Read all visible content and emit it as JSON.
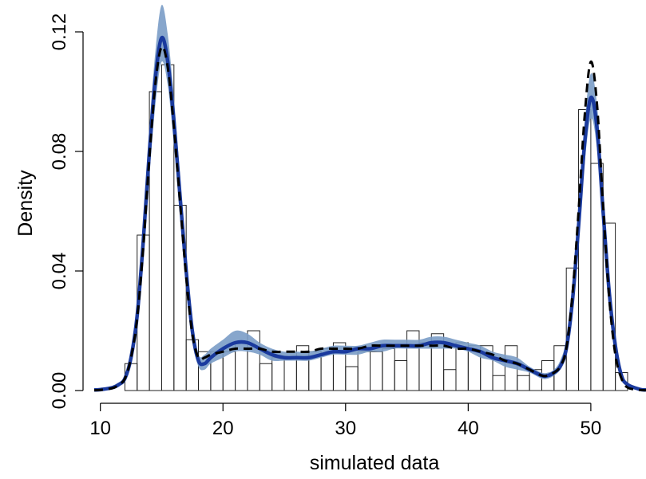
{
  "chart_data": {
    "type": "bar",
    "title": "",
    "xlabel": "simulated data",
    "ylabel": "Density",
    "xlim": [
      9.5,
      54.5
    ],
    "ylim": [
      0,
      0.13
    ],
    "grid": false,
    "x_ticks": [
      10,
      20,
      30,
      40,
      50
    ],
    "x_tick_labels": [
      "10",
      "20",
      "30",
      "40",
      "50"
    ],
    "y_ticks": [
      0,
      0.04,
      0.08,
      0.12
    ],
    "y_tick_labels": [
      "0.00",
      "0.04",
      "0.08",
      "0.12"
    ],
    "histogram": {
      "bin_width": 1,
      "bin_starts": [
        12,
        13,
        14,
        15,
        16,
        17,
        18,
        19,
        20,
        21,
        22,
        23,
        24,
        25,
        26,
        27,
        28,
        29,
        30,
        31,
        32,
        33,
        34,
        35,
        36,
        37,
        38,
        39,
        40,
        41,
        42,
        43,
        44,
        45,
        46,
        47,
        48,
        49,
        50,
        51,
        52
      ],
      "values": [
        0.009,
        0.052,
        0.1,
        0.109,
        0.062,
        0.017,
        0.013,
        0.013,
        0.013,
        0.016,
        0.02,
        0.009,
        0.011,
        0.011,
        0.015,
        0.013,
        0.014,
        0.016,
        0.008,
        0.013,
        0.013,
        0.014,
        0.01,
        0.02,
        0.016,
        0.019,
        0.007,
        0.016,
        0.015,
        0.015,
        0.005,
        0.015,
        0.005,
        0.007,
        0.01,
        0.015,
        0.041,
        0.094,
        0.076,
        0.056,
        0.006
      ]
    },
    "series": [
      {
        "name": "",
        "style": "solid-blue-with-band",
        "color": "#1a3a9e",
        "band_color": "#7a9cc6",
        "x": [
          9.5,
          10,
          11,
          11.5,
          12,
          12.5,
          13,
          13.5,
          14,
          14.5,
          15,
          15.5,
          16,
          16.5,
          17,
          17.5,
          18,
          18.5,
          19,
          20,
          21,
          22,
          23,
          24,
          25,
          26,
          27,
          28,
          29,
          30,
          31,
          32,
          33,
          34,
          35,
          36,
          37,
          38,
          39,
          40,
          41,
          42,
          43,
          44,
          45,
          46,
          46.5,
          47,
          47.5,
          48,
          48.5,
          49,
          49.5,
          50,
          50.5,
          51,
          51.5,
          52,
          52.5,
          53,
          54,
          54.5
        ],
        "values": [
          0.0002,
          0.0003,
          0.001,
          0.002,
          0.004,
          0.011,
          0.025,
          0.05,
          0.08,
          0.105,
          0.118,
          0.11,
          0.09,
          0.065,
          0.04,
          0.02,
          0.01,
          0.009,
          0.011,
          0.014,
          0.016,
          0.016,
          0.014,
          0.012,
          0.011,
          0.011,
          0.011,
          0.012,
          0.013,
          0.013,
          0.014,
          0.014,
          0.015,
          0.015,
          0.015,
          0.015,
          0.016,
          0.016,
          0.015,
          0.014,
          0.013,
          0.011,
          0.01,
          0.009,
          0.007,
          0.005,
          0.005,
          0.006,
          0.008,
          0.014,
          0.03,
          0.055,
          0.083,
          0.098,
          0.088,
          0.06,
          0.033,
          0.015,
          0.005,
          0.002,
          0.0004,
          0.0002
        ],
        "band_lower": [
          0.0001,
          0.0002,
          0.0008,
          0.0015,
          0.003,
          0.009,
          0.021,
          0.044,
          0.072,
          0.096,
          0.11,
          0.102,
          0.082,
          0.058,
          0.035,
          0.017,
          0.008,
          0.007,
          0.009,
          0.011,
          0.013,
          0.013,
          0.012,
          0.01,
          0.01,
          0.01,
          0.01,
          0.011,
          0.012,
          0.012,
          0.012,
          0.013,
          0.013,
          0.014,
          0.014,
          0.014,
          0.014,
          0.014,
          0.014,
          0.013,
          0.011,
          0.01,
          0.008,
          0.007,
          0.006,
          0.004,
          0.004,
          0.005,
          0.007,
          0.012,
          0.026,
          0.049,
          0.076,
          0.091,
          0.081,
          0.054,
          0.029,
          0.013,
          0.004,
          0.0015,
          0.0003,
          0.0001
        ],
        "band_upper": [
          0.0003,
          0.0004,
          0.0012,
          0.0025,
          0.005,
          0.013,
          0.029,
          0.056,
          0.088,
          0.114,
          0.129,
          0.119,
          0.098,
          0.072,
          0.045,
          0.023,
          0.012,
          0.012,
          0.014,
          0.017,
          0.02,
          0.019,
          0.016,
          0.014,
          0.013,
          0.013,
          0.013,
          0.014,
          0.015,
          0.015,
          0.015,
          0.016,
          0.017,
          0.017,
          0.017,
          0.017,
          0.018,
          0.018,
          0.017,
          0.016,
          0.015,
          0.013,
          0.012,
          0.011,
          0.008,
          0.006,
          0.006,
          0.007,
          0.01,
          0.017,
          0.034,
          0.061,
          0.09,
          0.106,
          0.096,
          0.067,
          0.038,
          0.018,
          0.006,
          0.0025,
          0.0006,
          0.0003
        ]
      },
      {
        "name": "",
        "style": "dashed-black",
        "color": "#000000",
        "x": [
          9.5,
          10,
          11,
          11.5,
          12,
          12.5,
          13,
          13.5,
          14,
          14.5,
          15,
          15.5,
          16,
          16.5,
          17,
          17.5,
          18,
          18.5,
          19,
          20,
          21,
          22,
          23,
          24,
          25,
          26,
          27,
          28,
          29,
          30,
          31,
          32,
          33,
          34,
          35,
          36,
          37,
          38,
          39,
          40,
          41,
          42,
          43,
          44,
          45,
          46,
          46.5,
          47,
          47.5,
          48,
          48.5,
          49,
          49.5,
          50,
          50.5,
          51,
          51.5,
          52,
          52.5,
          53,
          54,
          54.5
        ],
        "values": [
          0.0001,
          0.0002,
          0.0008,
          0.002,
          0.004,
          0.011,
          0.024,
          0.048,
          0.078,
          0.103,
          0.115,
          0.108,
          0.088,
          0.063,
          0.038,
          0.019,
          0.011,
          0.011,
          0.012,
          0.013,
          0.014,
          0.014,
          0.014,
          0.013,
          0.013,
          0.013,
          0.013,
          0.014,
          0.014,
          0.014,
          0.014,
          0.015,
          0.015,
          0.015,
          0.015,
          0.015,
          0.015,
          0.015,
          0.014,
          0.014,
          0.013,
          0.012,
          0.01,
          0.009,
          0.007,
          0.005,
          0.005,
          0.006,
          0.008,
          0.014,
          0.032,
          0.06,
          0.092,
          0.11,
          0.096,
          0.062,
          0.031,
          0.012,
          0.004,
          0.001,
          0.0002,
          0.0001
        ]
      }
    ]
  }
}
